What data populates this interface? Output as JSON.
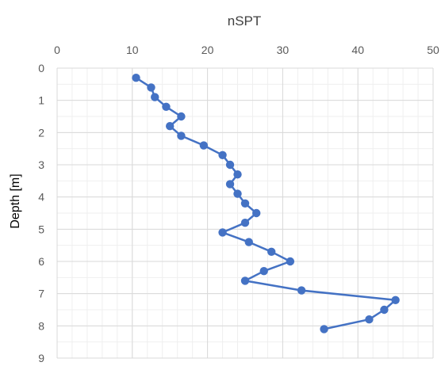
{
  "chart_data": {
    "type": "line",
    "title": "nSPT",
    "xlabel": "",
    "ylabel": "Depth [m]",
    "x_axis_position": "top",
    "y_axis_inverted": true,
    "xlim": [
      0,
      50
    ],
    "ylim": [
      0,
      9
    ],
    "x_ticks": [
      "0",
      "10",
      "20",
      "30",
      "40",
      "50"
    ],
    "y_ticks": [
      "0",
      "1",
      "2",
      "3",
      "4",
      "5",
      "6",
      "7",
      "8",
      "9"
    ],
    "grid": true,
    "minor_grid": true,
    "legend": "none",
    "colors": {
      "series": "#4472c4",
      "major_grid": "#d9d9d9",
      "minor_grid": "#efefef",
      "ticks": "#595959"
    },
    "series": [
      {
        "x": [
          10.5,
          12.5,
          13.0,
          14.5,
          16.5,
          15.0,
          16.5,
          19.5,
          22.0,
          23.0,
          24.0,
          23.0,
          24.0,
          25.0,
          26.5,
          25.0,
          22.0,
          25.5,
          28.5,
          31.0,
          27.5,
          25.0,
          32.5,
          45.0,
          43.5,
          41.5,
          35.5
        ],
        "y": [
          0.3,
          0.6,
          0.9,
          1.2,
          1.5,
          1.8,
          2.1,
          2.4,
          2.7,
          3.0,
          3.3,
          3.6,
          3.9,
          4.2,
          4.5,
          4.8,
          5.1,
          5.4,
          5.7,
          6.0,
          6.3,
          6.6,
          6.9,
          7.2,
          7.5,
          7.8,
          8.1
        ]
      }
    ]
  }
}
